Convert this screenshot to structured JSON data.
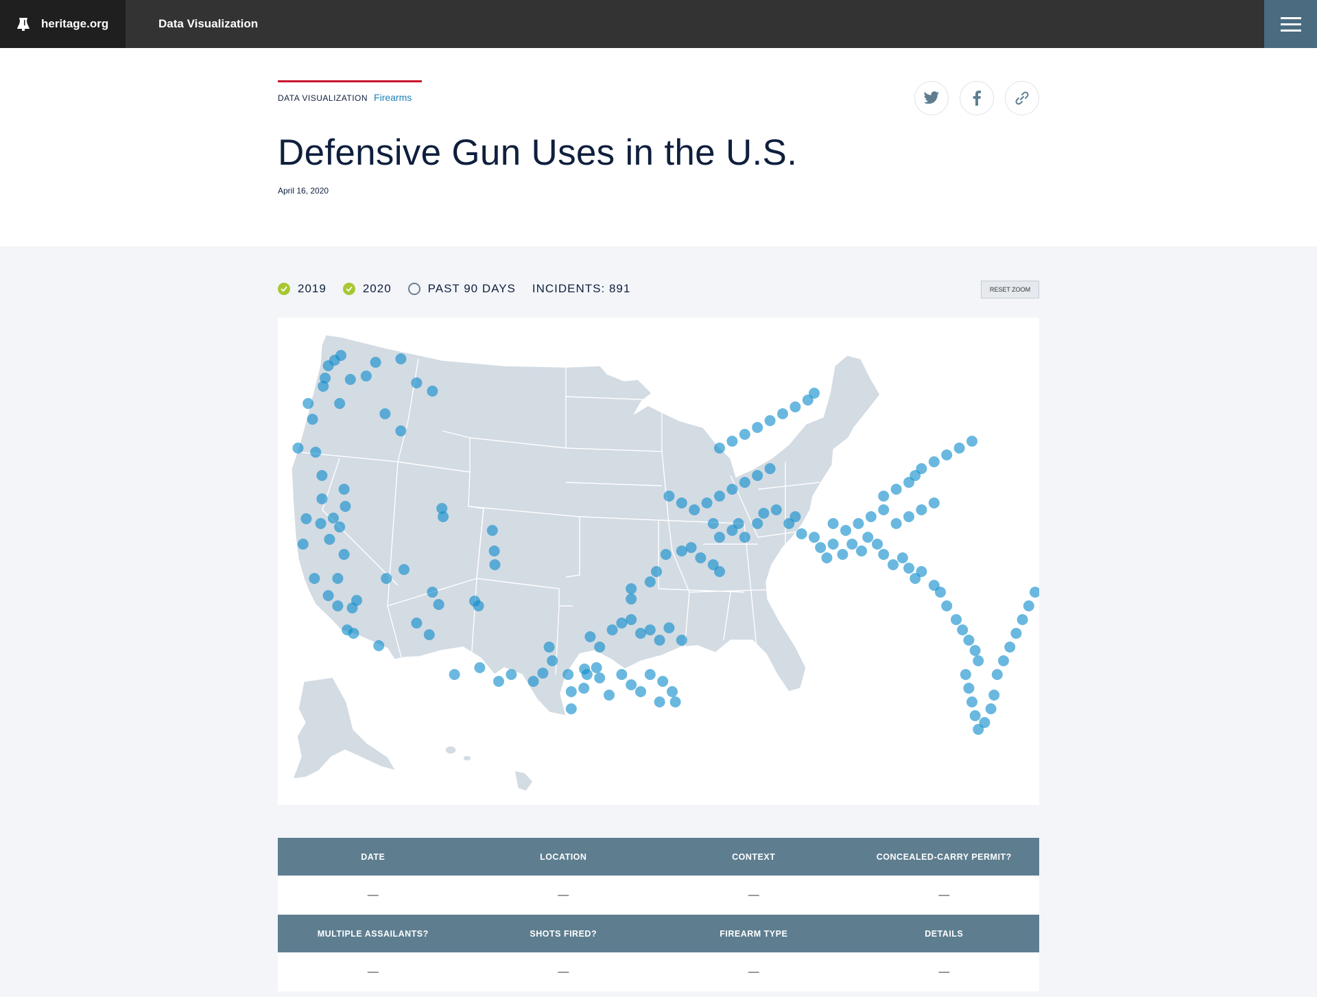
{
  "topbar": {
    "brand": "heritage.org",
    "section": "Data Visualization",
    "menu_icon": "hamburger-icon"
  },
  "header": {
    "kicker": "DATA VISUALIZATION",
    "topic": "Firearms",
    "title": "Defensive Gun Uses in the U.S.",
    "date": "April 16, 2020",
    "share_icons": [
      "twitter-icon",
      "facebook-icon",
      "link-icon"
    ]
  },
  "filters": {
    "items": [
      {
        "label": "2019",
        "checked": true
      },
      {
        "label": "2020",
        "checked": true
      },
      {
        "label": "PAST 90 DAYS",
        "checked": false
      }
    ],
    "incidents": "INCIDENTS: 891",
    "reset_zoom": "RESET ZOOM"
  },
  "colors": {
    "accent_red": "#c8102e",
    "link_blue": "#1c80b9",
    "check_green": "#a8c733",
    "map_land": "#d3dbe3",
    "dot": "#0f8ccc",
    "table_header": "#5e7e90"
  },
  "table": {
    "rows": [
      {
        "headers": [
          "DATE",
          "LOCATION",
          "CONTEXT",
          "CONCEALED-CARRY PERMIT?"
        ],
        "values": [
          "—",
          "—",
          "—",
          "—"
        ]
      },
      {
        "headers": [
          "MULTIPLE ASSAILANTS?",
          "SHOTS FIRED?",
          "FIREARM TYPE",
          "DETAILS"
        ],
        "values": [
          "—",
          "—",
          "—",
          "—"
        ]
      }
    ]
  }
}
